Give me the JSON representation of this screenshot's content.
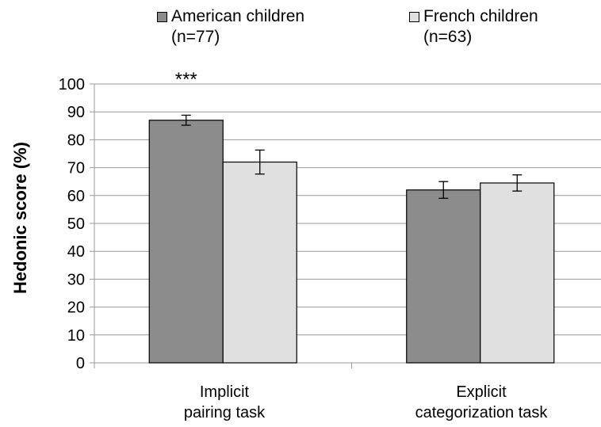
{
  "chart_data": {
    "type": "bar",
    "categories": [
      "Implicit\npairing task",
      "Explicit\ncategorization task"
    ],
    "series": [
      {
        "name": "American children\n(n=77)",
        "color": "#8c8c8c",
        "values": [
          87,
          62
        ],
        "errors": [
          1.8,
          3.0
        ]
      },
      {
        "name": "French children\n(n=63)",
        "color": "#e0e0e0",
        "values": [
          72,
          64.5
        ],
        "errors": [
          4.3,
          2.9
        ]
      }
    ],
    "annotations": [
      {
        "category_index": 0,
        "text": "***"
      }
    ],
    "xlabel": "",
    "ylabel": "Hedonic score (%)",
    "ylim": [
      0,
      100
    ],
    "yticks": [
      0,
      10,
      20,
      30,
      40,
      50,
      60,
      70,
      80,
      90,
      100
    ],
    "grid": true,
    "legend_position": "top"
  }
}
